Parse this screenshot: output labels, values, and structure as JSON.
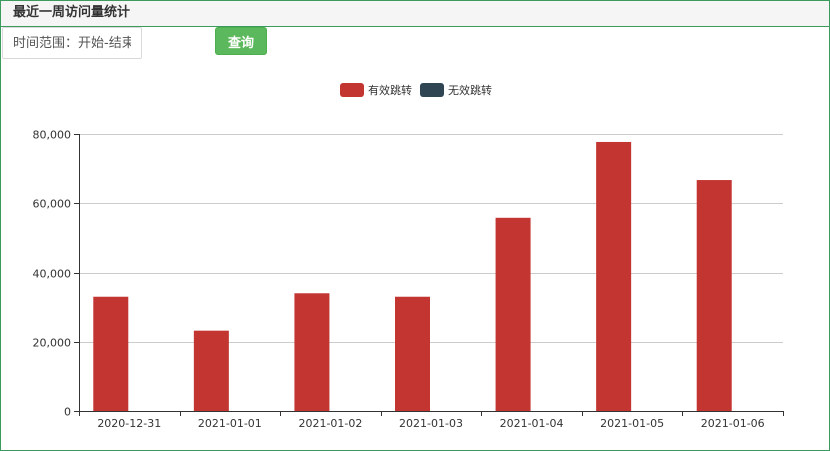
{
  "panel": {
    "title": "最近一周访问量统计"
  },
  "filter": {
    "range_placeholder": "时间范围：开始-结束",
    "query_label": "查询"
  },
  "colors": {
    "valid": "#c23531",
    "invalid": "#2f4554",
    "border": "#3c9a5f",
    "button": "#5cb85c"
  },
  "chart_data": {
    "type": "bar",
    "categories": [
      "2020-12-31",
      "2021-01-01",
      "2021-01-02",
      "2021-01-03",
      "2021-01-04",
      "2021-01-05",
      "2021-01-06"
    ],
    "series": [
      {
        "name": "有效跳转",
        "values": [
          33000,
          23200,
          34000,
          33000,
          55800,
          77700,
          66700
        ],
        "color": "#c23531"
      },
      {
        "name": "无效跳转",
        "values": [
          0,
          0,
          0,
          0,
          0,
          0,
          0
        ],
        "color": "#2f4554"
      }
    ],
    "ylim": [
      0,
      80000
    ],
    "yticks": [
      0,
      20000,
      40000,
      60000,
      80000
    ],
    "ytick_labels": [
      "0",
      "20,000",
      "40,000",
      "60,000",
      "80,000"
    ],
    "grid": true,
    "legend_position": "top-center"
  }
}
